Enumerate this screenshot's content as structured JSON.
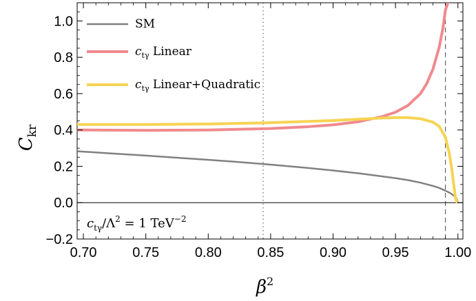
{
  "chart_data": {
    "type": "line",
    "xlabel": "β",
    "xlabel_sup": "2",
    "ylabel": "C",
    "ylabel_sub": "kr",
    "xlim": [
      0.695,
      1.004
    ],
    "ylim": [
      -0.2,
      1.1
    ],
    "x_ticks": [
      "0.70",
      "0.75",
      "0.80",
      "0.85",
      "0.90",
      "0.95",
      "1.00"
    ],
    "y_ticks": [
      "−0.2",
      "0.0",
      "0.2",
      "0.4",
      "0.6",
      "0.8",
      "1.0"
    ],
    "grid": false,
    "legend_position": "top-left",
    "reference_lines": [
      {
        "x": 0.844,
        "style": "dotted"
      },
      {
        "x": 0.99,
        "style": "dashed"
      },
      {
        "y": 0.0,
        "style": "solid"
      }
    ],
    "annotation": {
      "c": "c",
      "c_sub": "tγ",
      "mid": "/Λ",
      "sup1": "2",
      "eq": " = 1 TeV",
      "sup2": "−2"
    },
    "series": [
      {
        "name": "SM",
        "legend_main": "SM",
        "legend_prefix": "",
        "legend_sub": "",
        "color": "#808080",
        "x": [
          0.695,
          0.72,
          0.75,
          0.78,
          0.8,
          0.82,
          0.84,
          0.86,
          0.88,
          0.9,
          0.92,
          0.94,
          0.95,
          0.96,
          0.97,
          0.98,
          0.985,
          0.99,
          0.994,
          0.997,
          0.999,
          1.0
        ],
        "y": [
          0.283,
          0.272,
          0.259,
          0.245,
          0.236,
          0.226,
          0.215,
          0.203,
          0.191,
          0.177,
          0.162,
          0.144,
          0.135,
          0.124,
          0.11,
          0.092,
          0.081,
          0.066,
          0.052,
          0.037,
          0.021,
          0.0
        ]
      },
      {
        "name": "c_tγ Linear",
        "legend_main": " Linear",
        "legend_prefix": "c",
        "legend_sub": "tγ",
        "color": "#f08a8e",
        "x": [
          0.695,
          0.75,
          0.8,
          0.85,
          0.88,
          0.9,
          0.92,
          0.94,
          0.95,
          0.96,
          0.97,
          0.975,
          0.98,
          0.985,
          0.988,
          0.99,
          0.992
        ],
        "y": [
          0.4,
          0.398,
          0.4,
          0.408,
          0.418,
          0.428,
          0.445,
          0.475,
          0.498,
          0.535,
          0.6,
          0.655,
          0.735,
          0.855,
          0.96,
          1.06,
          1.1
        ]
      },
      {
        "name": "c_tγ Linear+Quadratic",
        "legend_main": " Linear+Quadratic",
        "legend_prefix": "c",
        "legend_sub": "tγ",
        "color": "#f7d354",
        "x": [
          0.695,
          0.75,
          0.8,
          0.85,
          0.88,
          0.9,
          0.92,
          0.94,
          0.95,
          0.96,
          0.97,
          0.98,
          0.985,
          0.99,
          0.993,
          0.995,
          0.997,
          0.998,
          0.999
        ],
        "y": [
          0.43,
          0.43,
          0.433,
          0.44,
          0.447,
          0.452,
          0.459,
          0.466,
          0.468,
          0.468,
          0.462,
          0.443,
          0.42,
          0.36,
          0.275,
          0.19,
          0.08,
          0.03,
          0.005
        ]
      }
    ]
  }
}
